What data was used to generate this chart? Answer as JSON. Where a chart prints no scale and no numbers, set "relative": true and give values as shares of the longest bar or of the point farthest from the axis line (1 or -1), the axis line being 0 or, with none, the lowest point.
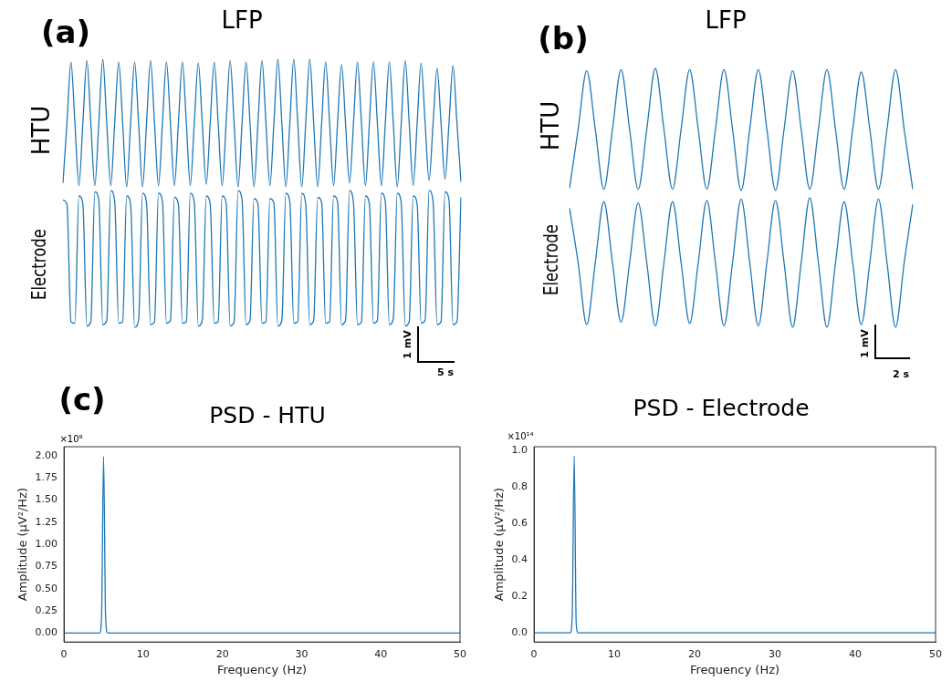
{
  "chart_data": [
    {
      "type": "line",
      "title": "LFP",
      "ylabel": "HTU",
      "annotations": [
        "(a)"
      ],
      "relative": true,
      "legend": false,
      "grid": false,
      "categories": [
        null,
        null,
        null,
        null,
        null,
        null,
        null,
        null,
        null,
        null,
        null,
        null,
        null,
        null,
        null,
        null,
        null,
        null,
        null,
        null,
        null,
        null,
        null,
        null,
        null,
        null,
        null,
        null,
        null,
        null,
        null,
        null,
        null,
        null,
        null,
        null,
        null,
        null,
        null,
        null,
        null,
        null,
        null,
        null,
        null,
        null,
        null,
        null,
        null,
        null,
        null,
        null,
        null,
        null,
        null,
        null,
        null,
        null,
        null,
        null,
        null,
        null,
        null,
        null,
        null,
        null,
        null,
        null,
        null,
        null,
        null,
        null,
        null,
        null,
        null,
        null,
        null,
        null,
        null,
        null,
        null,
        null,
        null,
        null,
        null,
        null,
        null,
        null,
        null,
        null,
        null,
        null,
        null,
        null,
        null,
        null,
        null,
        null,
        null,
        null,
        null
      ],
      "series": [
        {
          "color": "#1f77b4",
          "values": [
            0.03,
            0.5,
            0.98,
            0.5,
            0.01,
            0.5,
            0.99,
            0.5,
            0.01,
            0.5,
            1.0,
            0.5,
            0.01,
            0.5,
            0.98,
            0.5,
            0,
            0.5,
            0.98,
            0.5,
            0,
            0.5,
            0.99,
            0.5,
            0.01,
            0.5,
            0.98,
            0.5,
            0.01,
            0.5,
            0.98,
            0.5,
            0.01,
            0.5,
            0.97,
            0.5,
            0.02,
            0.5,
            0.98,
            0.5,
            0.01,
            0.5,
            0.99,
            0.5,
            0,
            0.5,
            0.98,
            0.5,
            0,
            0.5,
            0.99,
            0.5,
            0.01,
            0.5,
            1.0,
            0.5,
            0,
            0.5,
            1.0,
            0.5,
            0,
            0.5,
            1.0,
            0.5,
            0,
            0.5,
            0.98,
            0.5,
            0.01,
            0.5,
            0.96,
            0.5,
            0.03,
            0.5,
            0.98,
            0.5,
            0.01,
            0.5,
            0.98,
            0.5,
            0.01,
            0.5,
            0.98,
            0.5,
            0,
            0.5,
            0.99,
            0.5,
            0.01,
            0.5,
            0.97,
            0.5,
            0.05,
            0.5,
            0.93,
            0.5,
            0.06,
            0.5,
            0.95,
            0.5,
            0.04
          ]
        }
      ]
    },
    {
      "type": "line",
      "ylabel": "Electrode",
      "annotations": [
        "1 mV",
        "5 s"
      ],
      "relative": true,
      "legend": false,
      "grid": false,
      "categories": [
        null,
        null,
        null,
        null,
        null,
        null,
        null,
        null,
        null,
        null,
        null,
        null,
        null,
        null,
        null,
        null,
        null,
        null,
        null,
        null,
        null,
        null,
        null,
        null,
        null,
        null,
        null,
        null,
        null,
        null,
        null,
        null,
        null,
        null,
        null,
        null,
        null,
        null,
        null,
        null,
        null,
        null,
        null,
        null,
        null,
        null,
        null,
        null,
        null,
        null,
        null,
        null,
        null,
        null,
        null,
        null,
        null,
        null,
        null,
        null,
        null,
        null,
        null,
        null,
        null,
        null,
        null,
        null,
        null,
        null,
        null,
        null,
        null,
        null,
        null,
        null,
        null,
        null,
        null,
        null,
        null,
        null,
        null,
        null,
        null,
        null,
        null,
        null,
        null,
        null,
        null,
        null,
        null,
        null,
        null,
        null,
        null,
        null,
        null,
        null,
        null
      ],
      "series": [
        {
          "color": "#1f77b4",
          "values": [
            0.93,
            0.9,
            0.04,
            0.03,
            0.96,
            0.9,
            0.01,
            0.04,
            0.99,
            0.93,
            0.02,
            0.05,
            1.0,
            0.92,
            0.03,
            0.04,
            0.96,
            0.9,
            0.0,
            0.05,
            0.98,
            0.91,
            0.02,
            0.04,
            0.98,
            0.92,
            0.03,
            0.05,
            0.95,
            0.9,
            0.03,
            0.04,
            0.98,
            0.91,
            0.01,
            0.05,
            0.96,
            0.9,
            0.03,
            0.04,
            0.96,
            0.91,
            0.01,
            0.04,
            1.0,
            0.93,
            0.02,
            0.05,
            0.94,
            0.9,
            0.03,
            0.04,
            0.94,
            0.91,
            0.01,
            0.05,
            0.98,
            0.92,
            0.03,
            0.04,
            0.98,
            0.9,
            0.02,
            0.05,
            0.95,
            0.91,
            0.03,
            0.04,
            0.96,
            0.92,
            0.02,
            0.05,
            1.0,
            0.91,
            0.02,
            0.04,
            0.96,
            0.9,
            0.03,
            0.05,
            0.98,
            0.92,
            0.02,
            0.06,
            0.98,
            0.91,
            0.01,
            0.04,
            0.96,
            0.9,
            0.03,
            0.05,
            1.0,
            0.92,
            0.02,
            0.04,
            0.99,
            0.93,
            0.02,
            0.04,
            0.95
          ]
        }
      ]
    },
    {
      "type": "line",
      "title": "LFP",
      "ylabel": "HTU",
      "annotations": [
        "(b)"
      ],
      "relative": true,
      "legend": false,
      "grid": false,
      "categories": [
        null,
        null,
        null,
        null,
        null,
        null,
        null,
        null,
        null,
        null,
        null,
        null,
        null,
        null,
        null,
        null,
        null,
        null,
        null,
        null,
        null,
        null,
        null,
        null,
        null,
        null,
        null,
        null,
        null,
        null,
        null,
        null,
        null,
        null,
        null,
        null,
        null,
        null,
        null,
        null,
        null
      ],
      "series": [
        {
          "color": "#1f77b4",
          "values": [
            0.02,
            0.5,
            0.98,
            0.5,
            0.01,
            0.5,
            0.99,
            0.5,
            0.01,
            0.5,
            1.0,
            0.5,
            0.01,
            0.5,
            0.99,
            0.5,
            0.01,
            0.5,
            0.99,
            0.5,
            0,
            0.5,
            0.99,
            0.5,
            0,
            0.5,
            0.98,
            0.5,
            0.01,
            0.5,
            0.99,
            0.5,
            0.01,
            0.5,
            0.97,
            0.5,
            0.01,
            0.5,
            0.99,
            0.5,
            0.01
          ]
        }
      ]
    },
    {
      "type": "line",
      "ylabel": "Electrode",
      "annotations": [
        "1 mV",
        "2 s"
      ],
      "relative": true,
      "legend": false,
      "grid": false,
      "categories": [
        null,
        null,
        null,
        null,
        null,
        null,
        null,
        null,
        null,
        null,
        null,
        null,
        null,
        null,
        null,
        null,
        null,
        null,
        null,
        null,
        null,
        null,
        null,
        null,
        null,
        null,
        null,
        null,
        null,
        null,
        null,
        null,
        null,
        null,
        null,
        null,
        null,
        null,
        null,
        null,
        null
      ],
      "series": [
        {
          "color": "#1f77b4",
          "values": [
            0.92,
            0.5,
            0.02,
            0.5,
            0.97,
            0.5,
            0.04,
            0.5,
            0.96,
            0.5,
            0.01,
            0.5,
            0.97,
            0.5,
            0.03,
            0.5,
            0.98,
            0.5,
            0.01,
            0.5,
            0.99,
            0.5,
            0.01,
            0.5,
            0.98,
            0.5,
            0,
            0.5,
            1.0,
            0.5,
            0,
            0.5,
            0.97,
            0.5,
            0.02,
            0.5,
            0.99,
            0.5,
            0,
            0.5,
            0.95
          ]
        }
      ]
    },
    {
      "type": "line",
      "title": "PSD - HTU",
      "xlabel": "Frequency (Hz)",
      "ylabel": "Amplitude (μV²/Hz)",
      "annotations": [
        "(c)",
        "×10⁹"
      ],
      "legend": false,
      "grid": false,
      "xlim": [
        0,
        50
      ],
      "xticks": [
        0,
        10,
        20,
        30,
        40,
        50
      ],
      "ylim": [
        -0.1,
        2.1
      ],
      "yticks": [
        {
          "value": 0,
          "label": "0.00"
        },
        {
          "value": 0.25,
          "label": "0.25"
        },
        {
          "value": 0.5,
          "label": "0.50"
        },
        {
          "value": 0.75,
          "label": "0.75"
        },
        {
          "value": 1,
          "label": "1.00"
        },
        {
          "value": 1.25,
          "label": "1.25"
        },
        {
          "value": 1.5,
          "label": "1.50"
        },
        {
          "value": 1.75,
          "label": "1.75"
        },
        {
          "value": 2,
          "label": "2.00"
        }
      ],
      "series": [
        {
          "color": "#1f77b4",
          "x": [
            0,
            4.5,
            4.75,
            5,
            5.25,
            5.5,
            50
          ],
          "values": [
            0,
            0,
            0.2,
            1.99,
            0.2,
            0,
            0
          ]
        }
      ]
    },
    {
      "type": "line",
      "title": "PSD - Electrode",
      "xlabel": "Frequency (Hz)",
      "ylabel": "Amplitude (μV²/Hz)",
      "annotations": [
        "×10¹⁴"
      ],
      "legend": false,
      "grid": false,
      "xlim": [
        0,
        50
      ],
      "xticks": [
        0,
        10,
        20,
        30,
        40,
        50
      ],
      "ylim": [
        -0.05,
        1.02
      ],
      "yticks": [
        {
          "value": 0,
          "label": "0.0"
        },
        {
          "value": 0.2,
          "label": "0.2"
        },
        {
          "value": 0.4,
          "label": "0.4"
        },
        {
          "value": 0.6,
          "label": "0.6"
        },
        {
          "value": 0.8,
          "label": "0.8"
        },
        {
          "value": 1,
          "label": "1.0"
        }
      ],
      "series": [
        {
          "color": "#1f77b4",
          "x": [
            0,
            4.5,
            4.75,
            5,
            5.25,
            5.5,
            50
          ],
          "values": [
            0,
            0,
            0.08,
            0.97,
            0.05,
            0,
            0
          ]
        }
      ]
    }
  ]
}
